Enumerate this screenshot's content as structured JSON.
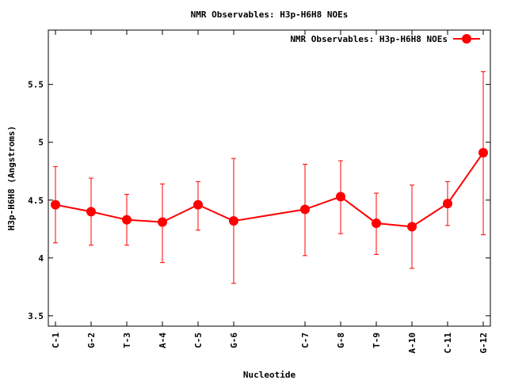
{
  "chart_data": {
    "type": "line",
    "title": "NMR Observables: H3p-H6H8 NOEs",
    "xlabel": "Nucleotide",
    "ylabel": "H3p-H6H8 (Angstroms)",
    "legend": {
      "entry": "NMR Observables: H3p-H6H8 NOEs",
      "placement": "top-right"
    },
    "xlim": [
      0.8,
      13.2
    ],
    "ylim": [
      3.41,
      5.97
    ],
    "yticks": [
      3.5,
      4,
      4.5,
      5,
      5.5
    ],
    "ytick_labels": [
      "3.5",
      "4",
      "4.5",
      "5",
      "5.5"
    ],
    "grid": false,
    "color": "#ff0000",
    "series": [
      {
        "name": "NMR Observables: H3p-H6H8 NOEs",
        "points": [
          {
            "x": 1,
            "label": "C-1",
            "y": 4.46,
            "low": 4.13,
            "high": 4.79
          },
          {
            "x": 2,
            "label": "G-2",
            "y": 4.4,
            "low": 4.11,
            "high": 4.69
          },
          {
            "x": 3,
            "label": "T-3",
            "y": 4.33,
            "low": 4.11,
            "high": 4.55
          },
          {
            "x": 4,
            "label": "A-4",
            "y": 4.31,
            "low": 3.96,
            "high": 4.64
          },
          {
            "x": 5,
            "label": "C-5",
            "y": 4.46,
            "low": 4.24,
            "high": 4.66
          },
          {
            "x": 6,
            "label": "G-6",
            "y": 4.32,
            "low": 3.78,
            "high": 4.86
          },
          {
            "x": 8,
            "label": "C-7",
            "y": 4.42,
            "low": 4.02,
            "high": 4.81
          },
          {
            "x": 9,
            "label": "G-8",
            "y": 4.53,
            "low": 4.21,
            "high": 4.84
          },
          {
            "x": 10,
            "label": "T-9",
            "y": 4.3,
            "low": 4.03,
            "high": 4.56
          },
          {
            "x": 11,
            "label": "A-10",
            "y": 4.27,
            "low": 3.91,
            "high": 4.63
          },
          {
            "x": 12,
            "label": "C-11",
            "y": 4.47,
            "low": 4.28,
            "high": 4.66
          },
          {
            "x": 13,
            "label": "G-12",
            "y": 4.91,
            "low": 4.2,
            "high": 5.61
          }
        ]
      }
    ]
  }
}
